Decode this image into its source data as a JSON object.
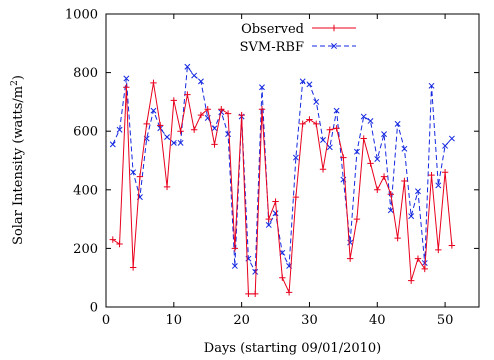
{
  "chart_data": {
    "type": "line",
    "title": "",
    "xlabel": "Days (starting 09/01/2010)",
    "ylabel": "Solar Intensity (watts/m",
    "ylabel_superscript": "2",
    "ylabel_suffix": ")",
    "xlim": [
      0,
      55
    ],
    "ylim": [
      0,
      1000
    ],
    "xticks": [
      0,
      10,
      20,
      30,
      40,
      50
    ],
    "yticks": [
      0,
      200,
      400,
      600,
      800,
      1000
    ],
    "grid": false,
    "legend_position": "top-right",
    "x": [
      1,
      2,
      3,
      4,
      5,
      6,
      7,
      8,
      9,
      10,
      11,
      12,
      13,
      14,
      15,
      16,
      17,
      18,
      19,
      20,
      21,
      22,
      23,
      24,
      25,
      26,
      27,
      28,
      29,
      30,
      31,
      32,
      33,
      34,
      35,
      36,
      37,
      38,
      39,
      40,
      41,
      42,
      43,
      44,
      45,
      46,
      47,
      48,
      49,
      50,
      51
    ],
    "series": [
      {
        "name": "Observed",
        "color": "#e8001c",
        "dash": "",
        "marker": "plus",
        "values": [
          230,
          215,
          750,
          135,
          445,
          625,
          765,
          620,
          410,
          705,
          600,
          725,
          605,
          655,
          675,
          555,
          675,
          660,
          200,
          655,
          45,
          45,
          675,
          300,
          360,
          100,
          50,
          375,
          625,
          640,
          625,
          470,
          605,
          610,
          510,
          165,
          300,
          575,
          490,
          400,
          445,
          385,
          235,
          430,
          90,
          165,
          130,
          450,
          195,
          460,
          210
        ]
      },
      {
        "name": "SVM-RBF",
        "color": "#1428e0",
        "dash": "5,3",
        "marker": "x",
        "values": [
          555,
          605,
          780,
          460,
          375,
          575,
          670,
          610,
          580,
          560,
          560,
          820,
          790,
          770,
          645,
          610,
          665,
          590,
          140,
          650,
          165,
          120,
          750,
          280,
          320,
          185,
          140,
          510,
          770,
          760,
          700,
          570,
          545,
          670,
          435,
          220,
          530,
          650,
          635,
          505,
          590,
          330,
          625,
          540,
          310,
          395,
          150,
          755,
          415,
          550,
          575
        ]
      }
    ]
  }
}
